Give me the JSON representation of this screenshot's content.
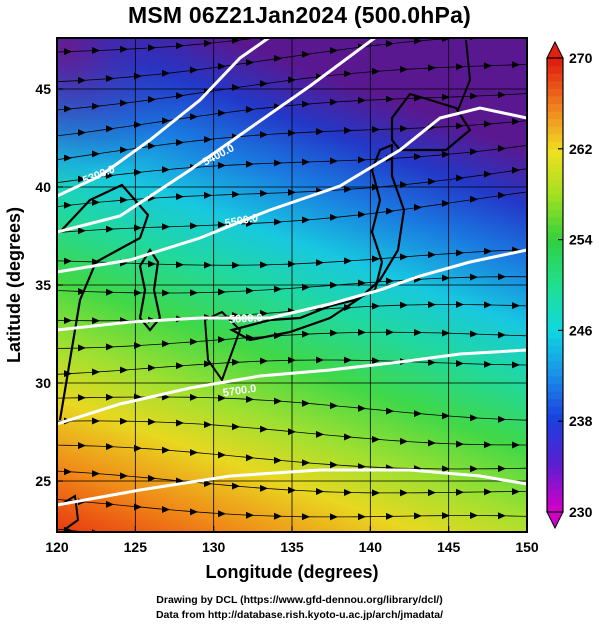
{
  "title": "MSM 06Z21Jan2024 (500.0hPa)",
  "axes": {
    "xlabel": "Longitude (degrees)",
    "ylabel": "Latitude  (degrees)",
    "xlim": [
      120,
      150
    ],
    "ylim": [
      22.4,
      47.6
    ],
    "xticks": [
      120,
      125,
      130,
      135,
      140,
      145,
      150
    ],
    "xtick_labels": [
      "120",
      "125",
      "130",
      "135",
      "140",
      "145",
      "150"
    ],
    "yticks": [
      25,
      30,
      35,
      40,
      45
    ],
    "ytick_labels": [
      "25",
      "30",
      "35",
      "40",
      "45"
    ],
    "grid": true
  },
  "colorbar": {
    "min": 230,
    "max": 270,
    "tick_values": [
      270,
      262,
      254,
      246,
      238,
      230
    ],
    "tick_labels": [
      "270",
      "262",
      "254",
      "246",
      "238",
      "230"
    ],
    "colormap": [
      "#d000c8",
      "#5a1fd0",
      "#1a3fe0",
      "#1a90e8",
      "#10d8e0",
      "#20e090",
      "#30d040",
      "#a0e020",
      "#f0e020",
      "#f08020",
      "#e02010"
    ]
  },
  "contours": {
    "color": "#ffffff",
    "labels": [
      "5300.0",
      "5400.0",
      "5500.0",
      "5600.0",
      "5700.0"
    ]
  },
  "credits": {
    "line1": "Drawing by DCL (https://www.gfd-dennou.org/library/dcl/)",
    "line2": "Data from http://database.rish.kyoto-u.ac.jp/arch/jmadata/"
  }
}
